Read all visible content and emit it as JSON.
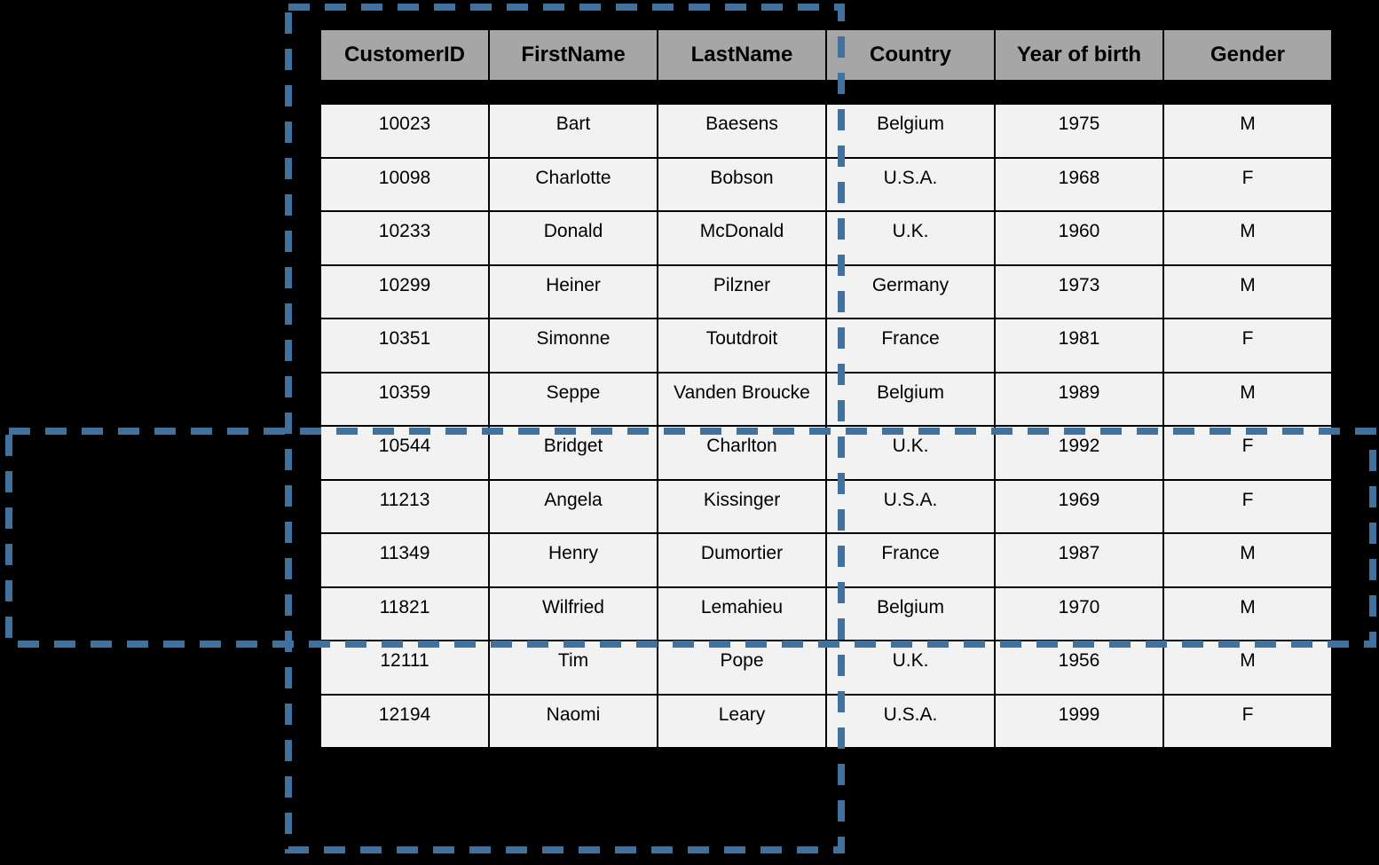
{
  "colors": {
    "page_background": "#000000",
    "header_background": "#a6a6a6",
    "cell_background": "#f2f2f2",
    "table_border": "#000000",
    "selection_dash": "#41719C"
  },
  "table": {
    "columns": [
      "CustomerID",
      "FirstName",
      "LastName",
      "Country",
      "Year of birth",
      "Gender"
    ],
    "rows": [
      [
        "10023",
        "Bart",
        "Baesens",
        "Belgium",
        "1975",
        "M"
      ],
      [
        "10098",
        "Charlotte",
        "Bobson",
        "U.S.A.",
        "1968",
        "F"
      ],
      [
        "10233",
        "Donald",
        "McDonald",
        "U.K.",
        "1960",
        "M"
      ],
      [
        "10299",
        "Heiner",
        "Pilzner",
        "Germany",
        "1973",
        "M"
      ],
      [
        "10351",
        "Simonne",
        "Toutdroit",
        "France",
        "1981",
        "F"
      ],
      [
        "10359",
        "Seppe",
        "Vanden Broucke",
        "Belgium",
        "1989",
        "M"
      ],
      [
        "10544",
        "Bridget",
        "Charlton",
        "U.K.",
        "1992",
        "F"
      ],
      [
        "11213",
        "Angela",
        "Kissinger",
        "U.S.A.",
        "1969",
        "F"
      ],
      [
        "11349",
        "Henry",
        "Dumortier",
        "France",
        "1987",
        "M"
      ],
      [
        "11821",
        "Wilfried",
        "Lemahieu",
        "Belgium",
        "1970",
        "M"
      ],
      [
        "12111",
        "Tim",
        "Pope",
        "U.K.",
        "1956",
        "M"
      ],
      [
        "12194",
        "Naomi",
        "Leary",
        "U.S.A.",
        "1999",
        "F"
      ]
    ]
  },
  "overlays": {
    "column_selection": {
      "covers_columns": [
        "CustomerID",
        "FirstName",
        "LastName"
      ]
    },
    "row_selection": {
      "covers_customer_ids": [
        "10544",
        "11213",
        "11349",
        "11821"
      ]
    }
  }
}
